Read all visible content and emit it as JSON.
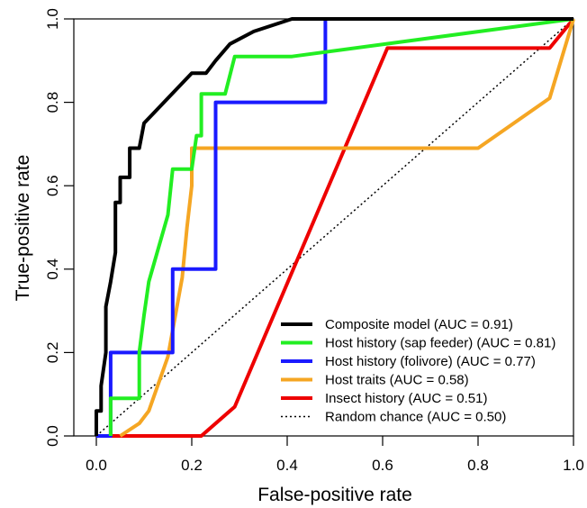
{
  "chart_data": {
    "type": "line",
    "title": "",
    "xlabel": "False-positive rate",
    "ylabel": "True-positive rate",
    "xlim": [
      0,
      1
    ],
    "ylim": [
      0,
      1
    ],
    "xticks": [
      "0.0",
      "0.2",
      "0.4",
      "0.6",
      "0.8",
      "1.0"
    ],
    "yticks": [
      "0.0",
      "0.2",
      "0.4",
      "0.6",
      "0.8",
      "1.0"
    ],
    "grid": false,
    "legend_position": "bottom-right",
    "series": [
      {
        "name": "Composite model (AUC = 0.91)",
        "color": "#000000",
        "style": "solid",
        "points": [
          [
            0,
            0
          ],
          [
            0,
            0.06
          ],
          [
            0.01,
            0.06
          ],
          [
            0.01,
            0.12
          ],
          [
            0.02,
            0.2
          ],
          [
            0.02,
            0.31
          ],
          [
            0.03,
            0.37
          ],
          [
            0.04,
            0.44
          ],
          [
            0.04,
            0.56
          ],
          [
            0.05,
            0.56
          ],
          [
            0.05,
            0.62
          ],
          [
            0.07,
            0.62
          ],
          [
            0.07,
            0.69
          ],
          [
            0.09,
            0.69
          ],
          [
            0.1,
            0.75
          ],
          [
            0.15,
            0.81
          ],
          [
            0.2,
            0.87
          ],
          [
            0.23,
            0.87
          ],
          [
            0.25,
            0.9
          ],
          [
            0.28,
            0.94
          ],
          [
            0.33,
            0.97
          ],
          [
            0.41,
            1
          ],
          [
            1,
            1
          ]
        ]
      },
      {
        "name": "Host history (sap feeder) (AUC = 0.81)",
        "color": "#22ee22",
        "style": "solid",
        "points": [
          [
            0.03,
            0
          ],
          [
            0.03,
            0.09
          ],
          [
            0.09,
            0.09
          ],
          [
            0.09,
            0.2
          ],
          [
            0.1,
            0.29
          ],
          [
            0.11,
            0.37
          ],
          [
            0.15,
            0.53
          ],
          [
            0.16,
            0.64
          ],
          [
            0.2,
            0.64
          ],
          [
            0.21,
            0.72
          ],
          [
            0.22,
            0.72
          ],
          [
            0.22,
            0.82
          ],
          [
            0.27,
            0.82
          ],
          [
            0.29,
            0.91
          ],
          [
            0.41,
            0.91
          ],
          [
            1,
            1
          ]
        ]
      },
      {
        "name": "Host history (folivore) (AUC = 0.77)",
        "color": "#1a1aff",
        "style": "solid",
        "points": [
          [
            0,
            0
          ],
          [
            0.03,
            0
          ],
          [
            0.03,
            0.2
          ],
          [
            0.16,
            0.2
          ],
          [
            0.16,
            0.4
          ],
          [
            0.25,
            0.4
          ],
          [
            0.25,
            0.8
          ],
          [
            0.48,
            0.8
          ],
          [
            0.48,
            1
          ],
          [
            1,
            1
          ]
        ]
      },
      {
        "name": "Host traits (AUC = 0.58)",
        "color": "#f5a623",
        "style": "solid",
        "points": [
          [
            0.05,
            0
          ],
          [
            0.09,
            0.03
          ],
          [
            0.11,
            0.06
          ],
          [
            0.15,
            0.19
          ],
          [
            0.18,
            0.38
          ],
          [
            0.19,
            0.5
          ],
          [
            0.2,
            0.6
          ],
          [
            0.2,
            0.69
          ],
          [
            0.8,
            0.69
          ],
          [
            0.95,
            0.81
          ],
          [
            1,
            1
          ]
        ]
      },
      {
        "name": "Insect history (AUC = 0.51)",
        "color": "#ee0000",
        "style": "solid",
        "points": [
          [
            0,
            0
          ],
          [
            0.22,
            0
          ],
          [
            0.29,
            0.07
          ],
          [
            0.61,
            0.93
          ],
          [
            0.95,
            0.93
          ],
          [
            1,
            1
          ]
        ]
      },
      {
        "name": "Random chance (AUC = 0.50)",
        "color": "#000000",
        "style": "dotted",
        "points": [
          [
            0,
            0
          ],
          [
            1,
            1
          ]
        ]
      }
    ]
  }
}
